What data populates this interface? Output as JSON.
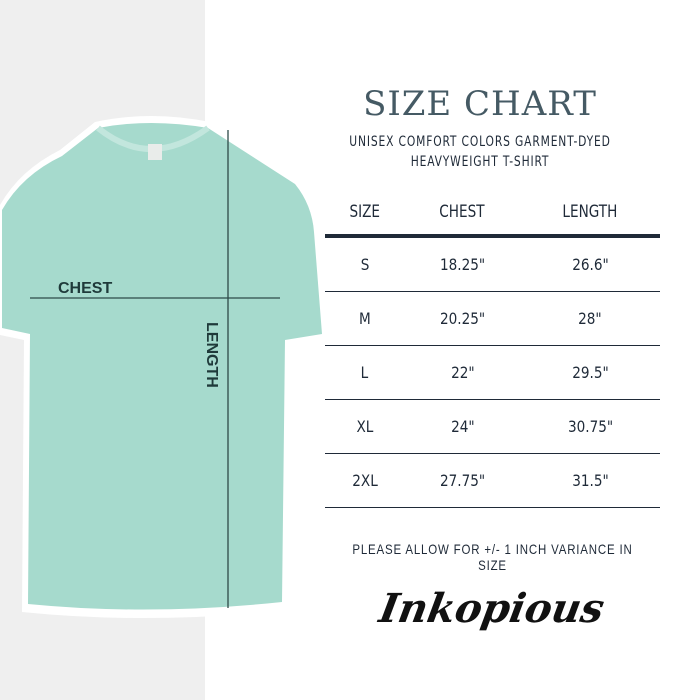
{
  "title": "SIZE CHART",
  "subtitle_line1": "UNISEX COMFORT COLORS GARMENT-DYED",
  "subtitle_line2": "HEAVYWEIGHT T-SHIRT",
  "table": {
    "headers": [
      "SIZE",
      "CHEST",
      "LENGTH"
    ],
    "rows": [
      [
        "S",
        "18.25\"",
        "26.6\""
      ],
      [
        "M",
        "20.25\"",
        "28\""
      ],
      [
        "L",
        "22\"",
        "29.5\""
      ],
      [
        "XL",
        "24\"",
        "30.75\""
      ],
      [
        "2XL",
        "27.75\"",
        "31.5\""
      ]
    ]
  },
  "shirt_labels": {
    "chest": "CHEST",
    "length": "LENGTH"
  },
  "note": "PLEASE ALLOW FOR +/- 1 INCH VARIANCE IN SIZE",
  "logo": "Inkopious",
  "colors": {
    "shirt": "#a6dacd",
    "text": "#1f2a38",
    "title": "#455a64",
    "left_bg": "#efefef"
  }
}
